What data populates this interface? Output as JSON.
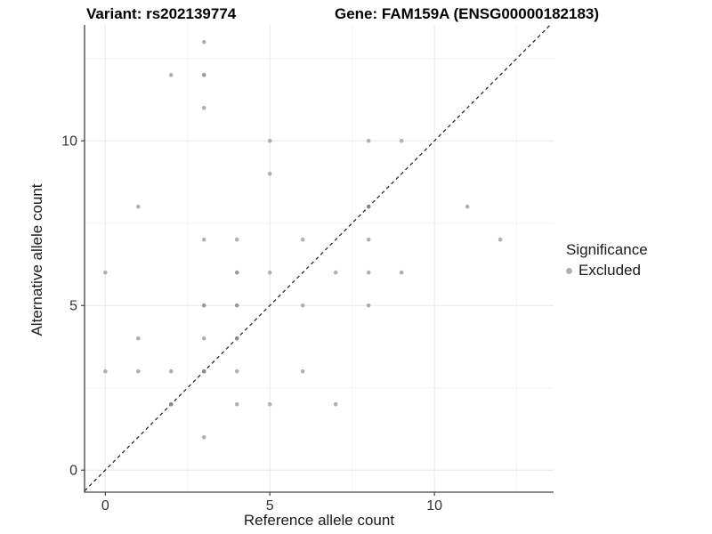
{
  "header": {
    "variant_title": "Variant: rs202139774",
    "gene_title": "Gene: FAM159A (ENSG00000182183)"
  },
  "chart_data": {
    "type": "scatter",
    "xlabel": "Reference allele count",
    "ylabel": "Alternative allele count",
    "x_ticks": [
      0,
      5,
      10
    ],
    "y_ticks": [
      0,
      5,
      10
    ],
    "x_minor_ticks": [
      2.5,
      7.5,
      12.5
    ],
    "y_minor_ticks": [
      2.5,
      7.5,
      12.5
    ],
    "xlim": [
      -0.63,
      13.62
    ],
    "ylim": [
      -0.67,
      13.52
    ],
    "grid": true,
    "identity_line": {
      "style": "dashed",
      "slope": 1,
      "intercept": 0
    },
    "legend": {
      "position": "right",
      "title": "Significance",
      "items": [
        {
          "label": "Excluded",
          "color": "#b0b0b0"
        }
      ]
    },
    "series": [
      {
        "name": "Excluded",
        "points": [
          [
            3,
            13,
            0
          ],
          [
            2,
            12,
            0
          ],
          [
            3,
            12,
            1
          ],
          [
            3,
            11,
            0
          ],
          [
            5,
            10,
            0
          ],
          [
            8,
            10,
            0
          ],
          [
            9,
            10,
            0
          ],
          [
            5,
            9,
            0
          ],
          [
            1,
            8,
            0
          ],
          [
            8,
            8,
            2
          ],
          [
            11,
            8,
            0
          ],
          [
            3,
            7,
            0
          ],
          [
            4,
            7,
            0
          ],
          [
            6,
            7,
            0
          ],
          [
            8,
            7,
            0
          ],
          [
            12,
            7,
            0
          ],
          [
            0,
            6,
            0
          ],
          [
            4,
            6,
            1
          ],
          [
            5,
            6,
            0
          ],
          [
            7,
            6,
            0
          ],
          [
            8,
            6,
            0
          ],
          [
            9,
            6,
            0
          ],
          [
            3,
            5,
            1
          ],
          [
            4,
            5,
            1
          ],
          [
            6,
            5,
            0
          ],
          [
            8,
            5,
            0
          ],
          [
            1,
            4,
            0
          ],
          [
            3,
            4,
            0
          ],
          [
            4,
            4,
            2
          ],
          [
            0,
            3,
            0
          ],
          [
            1,
            3,
            0
          ],
          [
            2,
            3,
            0
          ],
          [
            3,
            3,
            2
          ],
          [
            4,
            3,
            0
          ],
          [
            6,
            3,
            0
          ],
          [
            2,
            2,
            2
          ],
          [
            4,
            2,
            0
          ],
          [
            5,
            2,
            0
          ],
          [
            7,
            2,
            0
          ],
          [
            3,
            1,
            0
          ]
        ]
      }
    ]
  },
  "colors": {
    "background": "#ffffff",
    "point": "#b0b0b0",
    "point_overplot": "#999999",
    "point_online": "#8a8a8a",
    "grid_major": "#e7e7e7",
    "grid_minor": "#f2f2f2",
    "axis_line": "#404040",
    "tick_mark": "#333333",
    "tick_text": "#333333",
    "identity_line": "#1a1a1a"
  }
}
